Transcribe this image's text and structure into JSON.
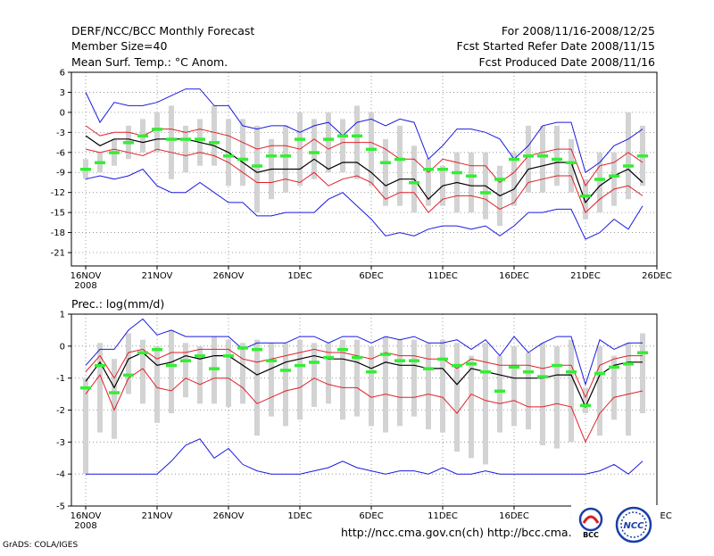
{
  "header": {
    "title": "DERF/NCC/BCC Monthly Forecast",
    "member_size": "Member Size=40",
    "forecast_period": "For 2008/11/16-2008/12/25",
    "started_refer_date": "Fcst Started Refer Date 2008/11/15",
    "produced_date": "Fcst Produced Date 2008/11/16"
  },
  "footer": {
    "grads_credit": "GrADS: COLA/IGES",
    "url_text": "http://ncc.cma.gov.cn(ch)   http://bcc.cma.gov.cn(en)",
    "logo_bcc": "BCC",
    "logo_ncc": "NCC"
  },
  "colors": {
    "spread_box": "#d3d3d3",
    "ensemble_mean": "#000000",
    "envelope_std": "#e0202a",
    "envelope_minmax": "#1a1ae0",
    "member_mark": "#33ee33",
    "grid": "#888888"
  },
  "chart_data": [
    {
      "type": "line",
      "title": "Mean Surf. Temp.: °C Anom.",
      "xlabel": "",
      "ylabel": "°C",
      "ylim": [
        -23,
        6
      ],
      "yticks": [
        6,
        3,
        0,
        -3,
        -6,
        -9,
        -12,
        -15,
        -18,
        -21
      ],
      "x": [
        1,
        2,
        3,
        4,
        5,
        6,
        7,
        8,
        9,
        10,
        11,
        12,
        13,
        14,
        15,
        16,
        17,
        18,
        19,
        20,
        21,
        22,
        23,
        24,
        25,
        26,
        27,
        28,
        29,
        30,
        31,
        32,
        33,
        34,
        35,
        36,
        37,
        38,
        39,
        40
      ],
      "xticks": [
        {
          "day": 1,
          "label": "16NOV",
          "sub": "2008"
        },
        {
          "day": 6,
          "label": "21NOV"
        },
        {
          "day": 11,
          "label": "26NOV"
        },
        {
          "day": 16,
          "label": "1DEC"
        },
        {
          "day": 21,
          "label": "6DEC"
        },
        {
          "day": 26,
          "label": "11DEC"
        },
        {
          "day": 31,
          "label": "16DEC"
        },
        {
          "day": 36,
          "label": "21DEC"
        },
        {
          "day": 41,
          "label": "26DEC"
        }
      ],
      "series": [
        {
          "name": "max",
          "values": [
            3,
            -1.5,
            1.5,
            1,
            1,
            1.5,
            2.5,
            3.5,
            3.5,
            1,
            1,
            -2,
            -2.5,
            -2,
            -2,
            -3,
            -2,
            -1.5,
            -3.5,
            -1.5,
            -1,
            -2,
            -1,
            -1.5,
            -7,
            -5,
            -2.5,
            -2.5,
            -3,
            -4,
            -7,
            -5,
            -2,
            -1.5,
            -1.5,
            -9,
            -7.5,
            -5,
            -4,
            -2.5
          ]
        },
        {
          "name": "std_upper",
          "values": [
            -2,
            -3.5,
            -3,
            -3,
            -3.5,
            -2.5,
            -2.5,
            -3,
            -2.5,
            -3,
            -3.5,
            -4.5,
            -5.5,
            -5,
            -5,
            -5.5,
            -4,
            -5.5,
            -4.5,
            -4.5,
            -4.5,
            -5.5,
            -7,
            -7,
            -9,
            -7,
            -7.5,
            -8,
            -8,
            -10.5,
            -9,
            -6.5,
            -6,
            -5.5,
            -5.5,
            -11,
            -8,
            -7.5,
            -6,
            -7.5
          ]
        },
        {
          "name": "mean",
          "values": [
            -3.5,
            -5,
            -4,
            -4,
            -4.5,
            -4,
            -4,
            -4,
            -4.5,
            -5,
            -6,
            -7.5,
            -9,
            -8.5,
            -8.5,
            -8.5,
            -7,
            -8.5,
            -7.5,
            -7.5,
            -9,
            -11,
            -10,
            -10,
            -13,
            -11,
            -10.5,
            -11,
            -11,
            -12.5,
            -11.5,
            -8.5,
            -8,
            -7.5,
            -7.5,
            -13.5,
            -11,
            -9.5,
            -8.5,
            -10.5
          ]
        },
        {
          "name": "std_lower",
          "values": [
            -5.5,
            -6,
            -5.5,
            -6,
            -6.5,
            -5.5,
            -6,
            -6.5,
            -6,
            -6.5,
            -7.5,
            -9,
            -10.5,
            -10.5,
            -10,
            -10.5,
            -9,
            -11,
            -10,
            -9.5,
            -10.5,
            -13,
            -12,
            -12,
            -15,
            -13,
            -12.5,
            -12.5,
            -13,
            -14.5,
            -13.5,
            -10.5,
            -10,
            -9.5,
            -9.5,
            -15,
            -13,
            -11.5,
            -11,
            -12.5
          ]
        },
        {
          "name": "min",
          "values": [
            -10,
            -9.5,
            -10,
            -9.5,
            -8.5,
            -11,
            -12,
            -12,
            -10.5,
            -12,
            -13.5,
            -13.5,
            -15.5,
            -15.5,
            -15,
            -15,
            -15,
            -13,
            -12,
            -14,
            -16,
            -18.5,
            -18,
            -18.5,
            -17.5,
            -17,
            -17,
            -17.5,
            -17,
            -18.5,
            -17,
            -15,
            -15,
            -14.5,
            -14.5,
            -19,
            -18,
            -16,
            -17.5,
            -14
          ]
        },
        {
          "name": "member_mark",
          "values": [
            -8.5,
            -7.5,
            -6,
            -4.5,
            -3.5,
            -2.5,
            -4,
            -4,
            -4,
            -4.5,
            -6.5,
            -7,
            -8,
            -6.5,
            -6.5,
            -4,
            -6,
            -4,
            -3.5,
            -3.5,
            -5.5,
            -7.5,
            -7,
            -10.5,
            -8.5,
            -8.5,
            -9,
            -9.5,
            -12,
            -10,
            -7,
            -6.5,
            -6.5,
            -7,
            -7.5,
            -12.5,
            -10,
            -9.5,
            -8,
            -6.5
          ]
        },
        {
          "name": "box_top",
          "values": [
            -7,
            -6,
            -4,
            -2,
            -1,
            0,
            1,
            -2,
            -1,
            1,
            -1,
            -1,
            -2,
            -4,
            -2,
            0,
            -1,
            0,
            -1,
            1,
            0,
            -4,
            -2,
            -5,
            -7,
            -8,
            -6,
            -6,
            -6,
            -8,
            -6,
            -2,
            -2,
            -2,
            -4,
            -10,
            -6,
            -6,
            0,
            -2
          ]
        },
        {
          "name": "box_bottom",
          "values": [
            -10,
            -9,
            -8,
            -7,
            -6,
            -6,
            -10,
            -9,
            -8,
            -8,
            -11,
            -11,
            -15,
            -13,
            -12,
            -11,
            -10,
            -9,
            -9,
            -10,
            -11,
            -14,
            -14,
            -15,
            -14,
            -14,
            -15,
            -15,
            -16,
            -17,
            -14,
            -12,
            -12,
            -11,
            -12,
            -16,
            -15,
            -14,
            -13,
            -11
          ]
        }
      ]
    },
    {
      "type": "line",
      "title": "Prec.: log(mm/d)",
      "xlabel": "",
      "ylabel": "log(mm/d)",
      "ylim": [
        -5,
        1
      ],
      "yticks": [
        1,
        0,
        -1,
        -2,
        -3,
        -4,
        -5
      ],
      "x": [
        1,
        2,
        3,
        4,
        5,
        6,
        7,
        8,
        9,
        10,
        11,
        12,
        13,
        14,
        15,
        16,
        17,
        18,
        19,
        20,
        21,
        22,
        23,
        24,
        25,
        26,
        27,
        28,
        29,
        30,
        31,
        32,
        33,
        34,
        35,
        36,
        37,
        38,
        39,
        40
      ],
      "xticks": [
        {
          "day": 1,
          "label": "16NOV",
          "sub": "2008"
        },
        {
          "day": 6,
          "label": "21NOV"
        },
        {
          "day": 11,
          "label": "26NOV"
        },
        {
          "day": 16,
          "label": "1DEC"
        },
        {
          "day": 21,
          "label": "6DEC"
        },
        {
          "day": 26,
          "label": "11DEC"
        },
        {
          "day": 31,
          "label": "16DEC"
        },
        {
          "day": 36,
          "label": "21DEC"
        },
        {
          "day": 41,
          "label": "26DEC"
        }
      ],
      "series": [
        {
          "name": "max",
          "values": [
            -0.6,
            -0.1,
            -0.1,
            0.5,
            0.85,
            0.35,
            0.5,
            0.3,
            0.3,
            0.3,
            0.3,
            -0.1,
            0.1,
            0.1,
            0.1,
            0.3,
            0.3,
            0.1,
            0.3,
            0.3,
            0.1,
            0.3,
            0.2,
            0.3,
            0.1,
            0.1,
            0.2,
            -0.1,
            0.2,
            -0.3,
            0.3,
            -0.2,
            0.1,
            0.3,
            0.3,
            -1.2,
            0.2,
            -0.1,
            0.1,
            0.1
          ]
        },
        {
          "name": "std_upper",
          "values": [
            -0.8,
            -0.3,
            -1.0,
            -0.2,
            -0.1,
            -0.4,
            -0.2,
            -0.2,
            -0.1,
            -0.1,
            -0.1,
            -0.4,
            -0.5,
            -0.4,
            -0.3,
            -0.2,
            -0.1,
            -0.2,
            -0.2,
            -0.3,
            -0.4,
            -0.2,
            -0.3,
            -0.3,
            -0.4,
            -0.4,
            -0.7,
            -0.4,
            -0.5,
            -0.6,
            -0.6,
            -0.6,
            -0.7,
            -0.6,
            -0.6,
            -1.6,
            -0.6,
            -0.4,
            -0.3,
            -0.3
          ]
        },
        {
          "name": "mean",
          "values": [
            -1.1,
            -0.5,
            -1.3,
            -0.4,
            -0.2,
            -0.6,
            -0.5,
            -0.3,
            -0.4,
            -0.3,
            -0.3,
            -0.6,
            -0.9,
            -0.7,
            -0.5,
            -0.4,
            -0.3,
            -0.4,
            -0.4,
            -0.5,
            -0.7,
            -0.5,
            -0.6,
            -0.6,
            -0.7,
            -0.7,
            -1.2,
            -0.7,
            -0.8,
            -0.9,
            -1.0,
            -1.0,
            -1.0,
            -0.9,
            -0.9,
            -1.9,
            -0.9,
            -0.6,
            -0.5,
            -0.5
          ]
        },
        {
          "name": "std_lower",
          "values": [
            -1.5,
            -0.9,
            -2.0,
            -1.0,
            -0.7,
            -1.3,
            -1.4,
            -1.0,
            -1.2,
            -1.0,
            -1.0,
            -1.3,
            -1.8,
            -1.6,
            -1.4,
            -1.3,
            -1.0,
            -1.2,
            -1.3,
            -1.3,
            -1.6,
            -1.5,
            -1.6,
            -1.6,
            -1.5,
            -1.6,
            -2.1,
            -1.5,
            -1.7,
            -1.8,
            -1.7,
            -1.9,
            -1.9,
            -1.8,
            -1.9,
            -3.0,
            -2.1,
            -1.6,
            -1.5,
            -1.4
          ]
        },
        {
          "name": "min",
          "values": [
            -4.0,
            -4.0,
            -4.0,
            -4.0,
            -4.0,
            -4.0,
            -3.6,
            -3.1,
            -2.9,
            -3.5,
            -3.2,
            -3.7,
            -3.9,
            -4.0,
            -4.0,
            -4.0,
            -3.9,
            -3.8,
            -3.6,
            -3.8,
            -3.9,
            -4.0,
            -3.9,
            -3.9,
            -4.0,
            -3.8,
            -4.0,
            -4.0,
            -3.9,
            -4.0,
            -4.0,
            -4.0,
            -4.0,
            -4.0,
            -4.0,
            -4.0,
            -3.9,
            -3.7,
            -4.0,
            -3.6
          ]
        },
        {
          "name": "member_mark",
          "values": [
            -1.3,
            -0.6,
            -1.45,
            -0.9,
            -0.2,
            -0.1,
            -0.6,
            -0.45,
            -0.3,
            -0.7,
            -0.3,
            -0.05,
            -0.1,
            -0.45,
            -0.75,
            -0.6,
            -0.5,
            -0.35,
            -0.1,
            -0.35,
            -0.8,
            -0.25,
            -0.45,
            -0.45,
            -0.7,
            -0.4,
            -0.6,
            -0.55,
            -0.8,
            -1.4,
            -0.65,
            -0.8,
            -0.95,
            -0.6,
            -0.8,
            -1.85,
            -0.85,
            -0.65,
            -0.55,
            -0.2
          ]
        },
        {
          "name": "box_top",
          "values": [
            -1.0,
            0.1,
            -0.4,
            0.4,
            0.2,
            0.0,
            0.5,
            0.1,
            0.0,
            0.3,
            0.2,
            0.1,
            0.2,
            0.1,
            0.1,
            0.2,
            0.1,
            0.1,
            0.2,
            0.2,
            0.0,
            0.3,
            0.2,
            0.2,
            0.1,
            0.2,
            0.1,
            -0.3,
            0.1,
            -0.3,
            0.0,
            -0.2,
            0.1,
            0.0,
            0.2,
            -1.3,
            0.0,
            -0.3,
            0.1,
            0.4
          ]
        },
        {
          "name": "box_bottom",
          "values": [
            -4.0,
            -2.7,
            -2.9,
            -1.5,
            -1.8,
            -2.4,
            -2.1,
            -1.6,
            -1.8,
            -1.8,
            -1.9,
            -1.8,
            -2.8,
            -2.2,
            -2.5,
            -2.3,
            -1.9,
            -1.8,
            -2.3,
            -2.2,
            -2.5,
            -2.7,
            -2.5,
            -2.2,
            -2.6,
            -2.7,
            -3.3,
            -3.5,
            -3.7,
            -2.7,
            -2.5,
            -2.6,
            -3.1,
            -3.2,
            -3.0,
            -2.1,
            -2.8,
            -2.3,
            -2.8,
            -2.1
          ]
        }
      ]
    }
  ]
}
